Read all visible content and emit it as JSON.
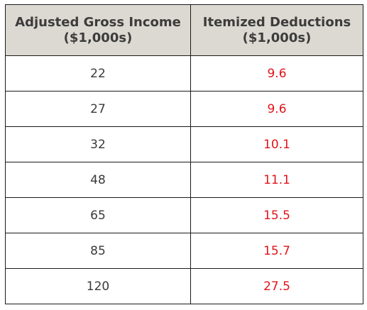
{
  "table": {
    "headers": [
      {
        "line1": "Adjusted Gross Income",
        "line2": "($1,000s)"
      },
      {
        "line1": "Itemized Deductions",
        "line2": "($1,000s)"
      }
    ],
    "rows": [
      {
        "income": "22",
        "deduction": "9.6"
      },
      {
        "income": "27",
        "deduction": "9.6"
      },
      {
        "income": "32",
        "deduction": "10.1"
      },
      {
        "income": "48",
        "deduction": "11.1"
      },
      {
        "income": "65",
        "deduction": "15.5"
      },
      {
        "income": "85",
        "deduction": "15.7"
      },
      {
        "income": "120",
        "deduction": "27.5"
      }
    ],
    "colors": {
      "header_bg": "#dcd9d2",
      "header_text": "#3c3c3c",
      "income_text": "#3a3a3a",
      "deduction_text": "#e0141b",
      "border": "#1a1a1a"
    }
  }
}
